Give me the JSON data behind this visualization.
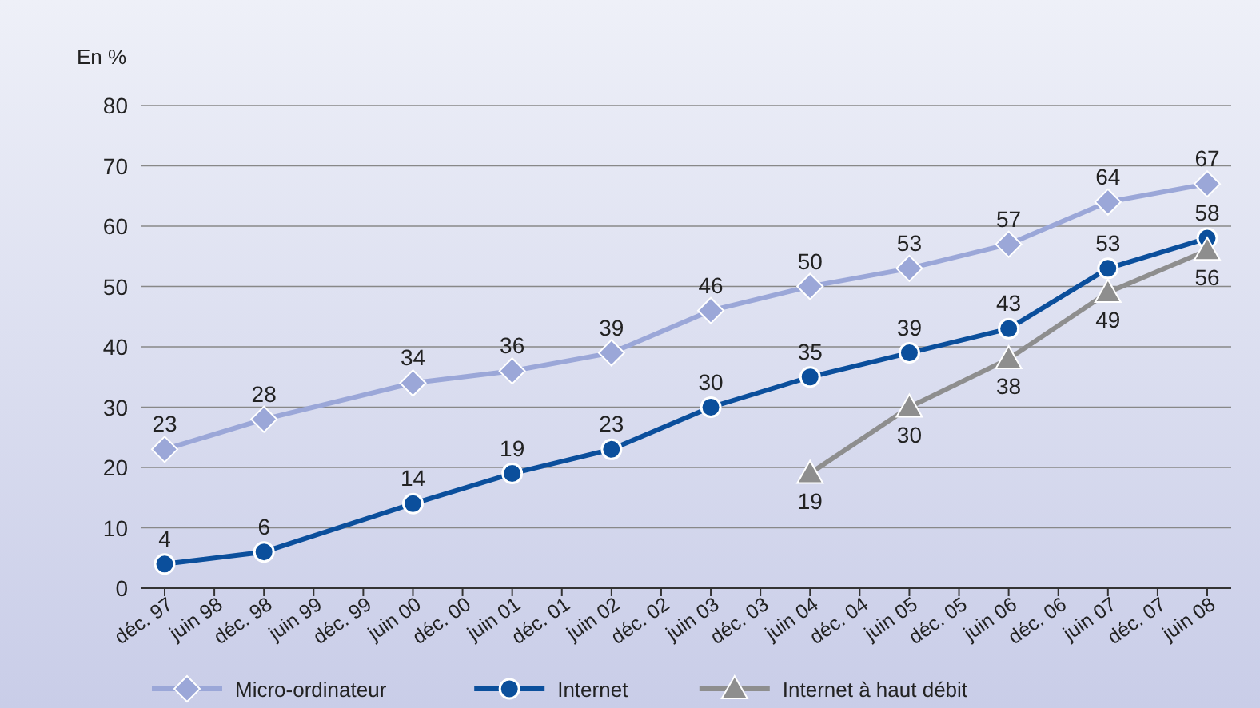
{
  "chart_data": {
    "type": "line",
    "ylabel": "En %",
    "categories": [
      "déc. 97",
      "juin 98",
      "déc. 98",
      "juin 99",
      "déc. 99",
      "juin 00",
      "déc. 00",
      "juin 01",
      "déc. 01",
      "juin 02",
      "déc. 02",
      "juin 03",
      "déc. 03",
      "juin 04",
      "déc. 04",
      "juin 05",
      "déc. 05",
      "juin 06",
      "déc. 06",
      "juin 07",
      "déc. 07",
      "juin 08"
    ],
    "series": [
      {
        "name": "Micro-ordinateur",
        "color": "#9ba7d8",
        "marker": "diamond",
        "values": [
          23,
          null,
          28,
          null,
          null,
          34,
          null,
          36,
          null,
          39,
          null,
          46,
          null,
          50,
          null,
          53,
          null,
          57,
          null,
          64,
          null,
          67
        ]
      },
      {
        "name": "Internet",
        "color": "#0b4f9c",
        "marker": "circle",
        "values": [
          4,
          null,
          6,
          null,
          null,
          14,
          null,
          19,
          null,
          23,
          null,
          30,
          null,
          35,
          null,
          39,
          null,
          43,
          null,
          53,
          null,
          58
        ]
      },
      {
        "name": "Internet à haut débit",
        "color": "#8e8e8e",
        "marker": "triangle",
        "values": [
          null,
          null,
          null,
          null,
          null,
          null,
          null,
          null,
          null,
          null,
          null,
          null,
          null,
          19,
          null,
          30,
          null,
          38,
          null,
          49,
          null,
          56
        ]
      }
    ],
    "ylim": [
      0,
      80
    ],
    "yticks": [
      0,
      10,
      20,
      30,
      40,
      50,
      60,
      70,
      80
    ],
    "grid": "y",
    "legend": "bottom",
    "data_labels": true,
    "line_style": "solid"
  }
}
